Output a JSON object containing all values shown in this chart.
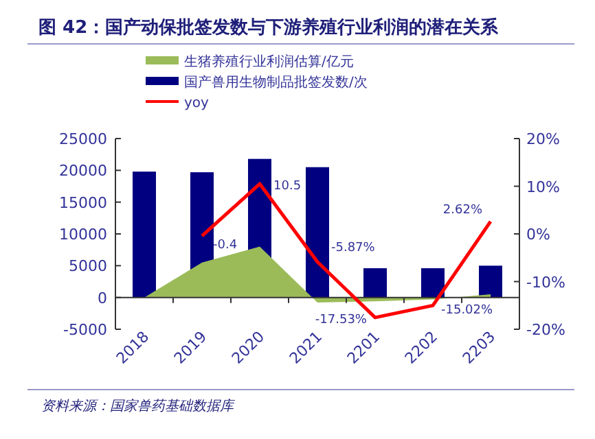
{
  "chart_data": {
    "type": "bar",
    "title": "图 42：国产动保批签发数与下游养殖行业利润的潜在关系",
    "categories": [
      "2018",
      "2019",
      "2020",
      "2021",
      "2201",
      "2202",
      "2203"
    ],
    "series": [
      {
        "name": "生猪养殖行业利润估算/亿元",
        "type": "area",
        "color": "#9bbb59",
        "values": [
          0,
          5500,
          8000,
          -800,
          -600,
          -300,
          500
        ]
      },
      {
        "name": "国产兽用生物制品批签发数/次",
        "color": "#000080",
        "values": [
          19800,
          19700,
          21800,
          20500,
          4600,
          4600,
          5000
        ]
      },
      {
        "name": "yoy",
        "type": "line",
        "axis": "y2",
        "color": "#ff0000",
        "values": [
          null,
          -0.4,
          10.5,
          -5.87,
          -17.53,
          -15.02,
          2.62
        ],
        "value_labels": [
          null,
          "-0.4",
          "10.5",
          "-5.87%",
          "-17.53%",
          "-15.02%",
          "2.62%"
        ]
      }
    ],
    "ylim": [
      -5000,
      25000
    ],
    "yticks": [
      -5000,
      0,
      5000,
      10000,
      15000,
      20000,
      25000
    ],
    "y2lim": [
      -20,
      20
    ],
    "y2ticks": [
      {
        "value": -20,
        "label": "-20%"
      },
      {
        "value": -10,
        "label": "-10%"
      },
      {
        "value": 0,
        "label": "0%"
      },
      {
        "value": 10,
        "label": "10%"
      },
      {
        "value": 20,
        "label": "20%"
      }
    ],
    "legend": "top",
    "annotations": [
      "资料来源：国家兽药基础数据库"
    ]
  }
}
